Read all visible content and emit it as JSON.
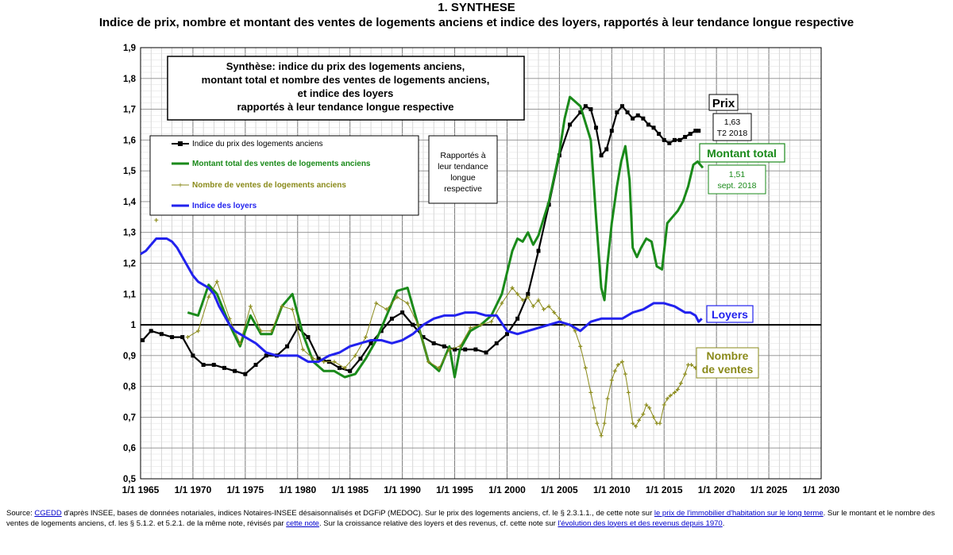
{
  "header": {
    "section_title": "1.  SYNTHESE",
    "subtitle": "Indice de prix, nombre et montant des ventes de logements anciens et indice des loyers, rapportés à leur tendance longue respective"
  },
  "source": {
    "prefix": "Source: ",
    "cgedd": "CGEDD",
    "t1": " d'après INSEE, bases de données notariales, indices Notaires-INSEE désaisonnalisés et DGFiP (MEDOC).  Sur le prix des logements anciens, cf. le §  2.3.1.1., de cette note sur ",
    "link1": "le prix de l'immobilier d'habitation sur le long terme",
    "t2": ".  Sur le montant et le nombre des ventes de logements anciens, cf. les § 5.1.2. et 5.2.1. de la même note, révisés par ",
    "link2": "cette note",
    "t3": ".  Sur la croissance relative des loyers et des revenus, cf. cette note sur ",
    "link3": "l'évolution des loyers et des revenus depuis 1970",
    "t4": "."
  },
  "chart_data": {
    "type": "line",
    "title": "Synthèse: indice du prix des logements anciens, montant total et nombre des ventes de logements anciens, et indice des loyers rapportés à leur tendance longue respective",
    "title_lines": [
      "Synthèse: indice du prix des logements anciens,",
      "montant total et nombre des ventes de logements anciens,",
      "et indice des loyers",
      "rapportés à leur tendance longue respective"
    ],
    "side_note_lines": [
      "Rapportés à",
      "leur tendance",
      "longue",
      "respective"
    ],
    "xlim": [
      1965,
      2030
    ],
    "ylim": [
      0.5,
      1.9
    ],
    "x_ticks": [
      1965,
      1970,
      1975,
      1980,
      1985,
      1990,
      1995,
      2000,
      2005,
      2010,
      2015,
      2020,
      2025,
      2030
    ],
    "x_tick_labels": [
      "1/1 1965",
      "1/1 1970",
      "1/1 1975",
      "1/1 1980",
      "1/1 1985",
      "1/1 1990",
      "1/1 1995",
      "1/1 2000",
      "1/1 2005",
      "1/1 2010",
      "1/1 2015",
      "1/1 2020",
      "1/1 2025",
      "1/1 2030"
    ],
    "y_ticks": [
      0.5,
      0.6,
      0.7,
      0.8,
      0.9,
      1.0,
      1.1,
      1.2,
      1.3,
      1.4,
      1.5,
      1.6,
      1.7,
      1.8,
      1.9
    ],
    "y_tick_labels": [
      "0,5",
      "0,6",
      "0,7",
      "0,8",
      "0,9",
      "1",
      "1,1",
      "1,2",
      "1,3",
      "1,4",
      "1,5",
      "1,6",
      "1,7",
      "1,8",
      "1,9"
    ],
    "reference_line": 1.0,
    "grid": true,
    "legend_position": "upper-left",
    "series": [
      {
        "name": "Indice du prix des logements anciens",
        "short_label": "Prix",
        "color": "#000000",
        "marker": "square",
        "x": [
          1965.2,
          1966,
          1967,
          1968,
          1969,
          1970,
          1971,
          1972,
          1973,
          1974,
          1975,
          1976,
          1977,
          1978,
          1979,
          1980,
          1981,
          1982,
          1983,
          1984,
          1985,
          1986,
          1987,
          1988,
          1989,
          1990,
          1991,
          1992,
          1993,
          1994,
          1995,
          1996,
          1997,
          1998,
          1999,
          2000,
          2001,
          2002,
          2003,
          2004,
          2005,
          2006,
          2007,
          2007.5,
          2008,
          2008.5,
          2009,
          2009.5,
          2010,
          2010.5,
          2011,
          2011.5,
          2012,
          2012.5,
          2013,
          2013.5,
          2014,
          2014.5,
          2015,
          2015.5,
          2016,
          2016.5,
          2017,
          2017.5,
          2018,
          2018.3
        ],
        "y": [
          0.95,
          0.98,
          0.97,
          0.96,
          0.96,
          0.9,
          0.87,
          0.87,
          0.86,
          0.85,
          0.84,
          0.87,
          0.9,
          0.9,
          0.93,
          0.99,
          0.96,
          0.89,
          0.88,
          0.86,
          0.85,
          0.89,
          0.94,
          0.98,
          1.02,
          1.04,
          1.0,
          0.96,
          0.94,
          0.93,
          0.92,
          0.92,
          0.92,
          0.91,
          0.94,
          0.97,
          1.02,
          1.1,
          1.24,
          1.39,
          1.55,
          1.65,
          1.69,
          1.71,
          1.7,
          1.64,
          1.55,
          1.57,
          1.63,
          1.69,
          1.71,
          1.69,
          1.67,
          1.68,
          1.67,
          1.65,
          1.64,
          1.62,
          1.6,
          1.59,
          1.6,
          1.6,
          1.61,
          1.62,
          1.63,
          1.63
        ],
        "end_label_lines": [
          "1,63",
          "T2 2018"
        ]
      },
      {
        "name": "Montant total des ventes de logements anciens",
        "short_label": "Montant total",
        "color": "#1a8a1a",
        "marker": "none",
        "x": [
          1969.5,
          1970.5,
          1971.5,
          1972.3,
          1973.5,
          1974.5,
          1975.5,
          1976.5,
          1977.5,
          1978.5,
          1979.5,
          1980.5,
          1981.5,
          1982.5,
          1983.5,
          1984.5,
          1985.5,
          1986.5,
          1987.5,
          1988.5,
          1989.5,
          1990.5,
          1991.5,
          1992.5,
          1993.5,
          1994.5,
          1995,
          1995.5,
          1996.5,
          1997.5,
          1998.5,
          1999.5,
          2000.5,
          2001,
          2001.5,
          2002,
          2002.5,
          2003,
          2004,
          2005,
          2005.5,
          2006,
          2007,
          2008,
          2008.5,
          2009,
          2009.3,
          2009.6,
          2010,
          2010.5,
          2010.9,
          2011.3,
          2011.7,
          2012,
          2012.4,
          2012.8,
          2013.3,
          2013.8,
          2014.3,
          2014.8,
          2015.3,
          2015.8,
          2016.3,
          2016.8,
          2017.3,
          2017.8,
          2018.2,
          2018.7
        ],
        "y": [
          1.04,
          1.03,
          1.13,
          1.1,
          1.0,
          0.93,
          1.03,
          0.97,
          0.97,
          1.06,
          1.1,
          0.97,
          0.88,
          0.85,
          0.85,
          0.83,
          0.84,
          0.89,
          0.95,
          1.03,
          1.11,
          1.12,
          1.0,
          0.88,
          0.85,
          0.93,
          0.83,
          0.92,
          0.98,
          1.0,
          1.03,
          1.1,
          1.24,
          1.28,
          1.27,
          1.3,
          1.26,
          1.29,
          1.4,
          1.56,
          1.67,
          1.74,
          1.71,
          1.6,
          1.35,
          1.12,
          1.08,
          1.2,
          1.33,
          1.45,
          1.53,
          1.58,
          1.47,
          1.25,
          1.22,
          1.25,
          1.28,
          1.27,
          1.19,
          1.18,
          1.33,
          1.35,
          1.37,
          1.4,
          1.45,
          1.52,
          1.53,
          1.51
        ],
        "end_label_lines": [
          "1,51",
          "sept. 2018"
        ]
      },
      {
        "name": "Nombre de ventes de logements anciens",
        "short_label_lines": [
          "Nombre",
          "de ventes"
        ],
        "color": "#8a8a1a",
        "marker": "plus",
        "x": [
          1966.5,
          1969.5,
          1970.5,
          1971.5,
          1972.3,
          1973.5,
          1974.5,
          1975.5,
          1976.5,
          1977.5,
          1978.5,
          1979.5,
          1980.5,
          1981.5,
          1982.5,
          1983.5,
          1984.5,
          1985.5,
          1986.5,
          1987.5,
          1988.5,
          1989.5,
          1990.5,
          1991.5,
          1992.5,
          1993.5,
          1994.5,
          1995.5,
          1996.5,
          1997.5,
          1998.5,
          1999.5,
          2000.5,
          2001,
          2001.5,
          2002,
          2002.5,
          2003,
          2003.5,
          2004,
          2004.5,
          2005,
          2005.5,
          2006,
          2006.5,
          2007,
          2007.5,
          2008,
          2008.3,
          2008.6,
          2009,
          2009.3,
          2009.6,
          2010,
          2010.3,
          2010.6,
          2011,
          2011.3,
          2011.6,
          2012,
          2012.3,
          2012.6,
          2013,
          2013.3,
          2013.6,
          2014,
          2014.3,
          2014.6,
          2015,
          2015.3,
          2015.6,
          2016,
          2016.3,
          2016.6,
          2017,
          2017.3,
          2017.6,
          2018,
          2018.3,
          2018.7
        ],
        "y": [
          1.34,
          0.96,
          0.98,
          1.09,
          1.14,
          1.02,
          0.94,
          1.06,
          0.98,
          0.98,
          1.06,
          1.05,
          0.92,
          0.89,
          0.88,
          0.88,
          0.86,
          0.9,
          0.96,
          1.07,
          1.05,
          1.09,
          1.07,
          1.0,
          0.88,
          0.86,
          0.92,
          0.93,
          0.99,
          1.0,
          1.01,
          1.07,
          1.12,
          1.1,
          1.08,
          1.09,
          1.06,
          1.08,
          1.05,
          1.06,
          1.04,
          1.02,
          1.0,
          1.0,
          0.98,
          0.93,
          0.86,
          0.78,
          0.73,
          0.68,
          0.64,
          0.68,
          0.76,
          0.82,
          0.85,
          0.87,
          0.88,
          0.84,
          0.78,
          0.68,
          0.67,
          0.69,
          0.71,
          0.74,
          0.73,
          0.7,
          0.68,
          0.68,
          0.74,
          0.76,
          0.77,
          0.78,
          0.79,
          0.81,
          0.84,
          0.87,
          0.87,
          0.86,
          0.85,
          0.85
        ]
      },
      {
        "name": "Indice des loyers",
        "short_label": "Loyers",
        "color": "#2222ee",
        "marker": "none",
        "x": [
          1965,
          1965.5,
          1966,
          1966.5,
          1967,
          1967.5,
          1968,
          1968.5,
          1969,
          1969.5,
          1970,
          1970.5,
          1971,
          1971.5,
          1972,
          1972.5,
          1973,
          1973.5,
          1974,
          1974.5,
          1975,
          1976,
          1977,
          1978,
          1979,
          1980,
          1981,
          1982,
          1983,
          1984,
          1985,
          1986,
          1987,
          1988,
          1989,
          1990,
          1991,
          1992,
          1993,
          1994,
          1995,
          1996,
          1997,
          1998,
          1999,
          2000,
          2001,
          2002,
          2003,
          2004,
          2005,
          2006,
          2007,
          2008,
          2009,
          2010,
          2011,
          2012,
          2013,
          2014,
          2015,
          2016,
          2017,
          2017.5,
          2018,
          2018.3,
          2018.6
        ],
        "y": [
          1.23,
          1.24,
          1.26,
          1.28,
          1.28,
          1.28,
          1.27,
          1.25,
          1.22,
          1.19,
          1.16,
          1.14,
          1.13,
          1.12,
          1.1,
          1.06,
          1.03,
          1.0,
          0.98,
          0.97,
          0.96,
          0.94,
          0.91,
          0.9,
          0.9,
          0.9,
          0.88,
          0.88,
          0.9,
          0.91,
          0.93,
          0.94,
          0.95,
          0.95,
          0.94,
          0.95,
          0.97,
          1.0,
          1.02,
          1.03,
          1.03,
          1.04,
          1.04,
          1.03,
          1.03,
          0.98,
          0.97,
          0.98,
          0.99,
          1.0,
          1.01,
          1.0,
          0.98,
          1.01,
          1.02,
          1.02,
          1.02,
          1.04,
          1.05,
          1.07,
          1.07,
          1.06,
          1.04,
          1.04,
          1.03,
          1.01,
          1.02
        ]
      }
    ]
  }
}
